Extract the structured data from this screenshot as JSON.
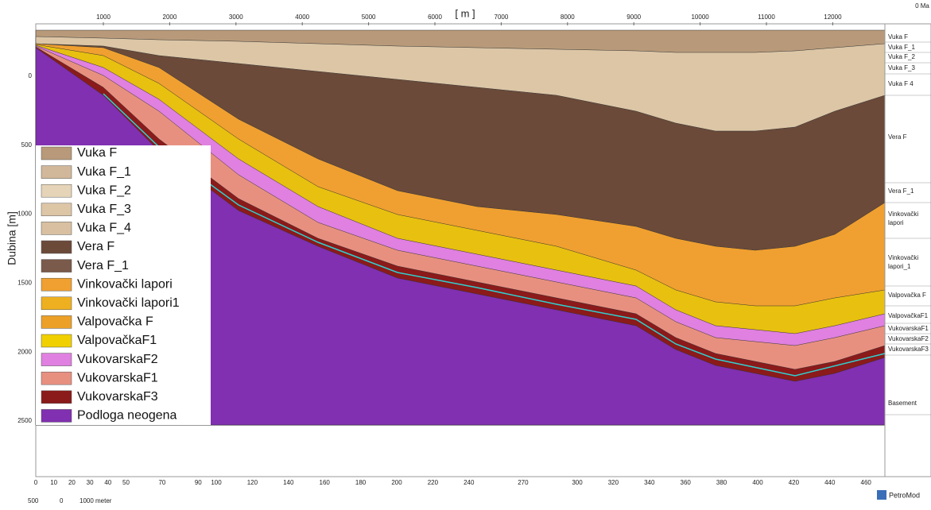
{
  "header": {
    "unit_top": "[ m ]",
    "age": "0 Ma",
    "y_title": "Dubina [m]",
    "logo": "PetroMod"
  },
  "top_axis": [
    "1000",
    "2000",
    "3000",
    "4000",
    "5000",
    "6000",
    "7000",
    "8000",
    "9000",
    "10000",
    "11000",
    "12000"
  ],
  "left_axis": [
    "0",
    "500",
    "1000",
    "1500",
    "2000",
    "2500"
  ],
  "bottom_axis": [
    "0",
    "10",
    "20",
    "30",
    "40",
    "50",
    "70",
    "90",
    "100",
    "120",
    "140",
    "160",
    "180",
    "200",
    "220",
    "240",
    "270",
    "300",
    "320",
    "340",
    "360",
    "380",
    "400",
    "420",
    "440",
    "460"
  ],
  "scale_bar": [
    "500",
    "0",
    "1000 meter"
  ],
  "right_labels": [
    "Vuka F",
    "Vuka F_1",
    "Vuka F_2",
    "Vuka F_3",
    "Vuka F 4",
    "Vera F",
    "Vera F_1",
    "Vinkovački lapori",
    "Vinkovački lapori_1",
    "Valpovačka F",
    "ValpovačkaF1",
    "VukovarskaF1",
    "VukovarskaF2",
    "VukovarskaF3",
    "Basement"
  ],
  "legend": [
    "Vuka F",
    "Vuka F_1",
    "Vuka F_2",
    "Vuka F_3",
    "Vuka F_4",
    "Vera F",
    "Vera F_1",
    "Vinkovački lapori",
    "Vinkovački lapori1",
    "Valpovačka F",
    "ValpovačkaF1",
    "VukovarskaF2",
    "VukovarskaF1",
    "VukovarskaF3",
    "Podloga neogena"
  ]
}
